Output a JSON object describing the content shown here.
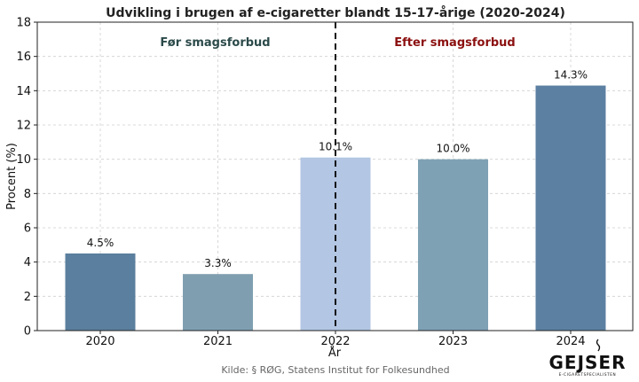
{
  "chart_data": {
    "type": "bar",
    "title": "Udvikling i brugen af e-cigaretter blandt 15-17-årige (2020-2024)",
    "xlabel": "År",
    "ylabel": "Procent (%)",
    "categories": [
      "2020",
      "2021",
      "2022",
      "2023",
      "2024"
    ],
    "values": [
      4.5,
      3.3,
      10.1,
      10.0,
      14.3
    ],
    "value_labels": [
      "4.5%",
      "3.3%",
      "10.1%",
      "10.0%",
      "14.3%"
    ],
    "bar_colors": [
      "#5b7f9e",
      "#7f9fb1",
      "#b3c6e3",
      "#7fa1b4",
      "#5c80a2"
    ],
    "ylim": [
      0,
      18
    ],
    "yticks": [
      0,
      2,
      4,
      6,
      8,
      10,
      12,
      14,
      16,
      18
    ],
    "grid": true,
    "divider_after_category_index": 2,
    "annotations": {
      "before": "Før smagsforbud",
      "after": "Efter smagsforbud"
    },
    "annotation_colors": {
      "before": "#2c4a4a",
      "after": "#8b0f0f"
    },
    "source": "Kilde: § RØG, Statens Institut for Folkesundhed"
  },
  "logo": {
    "text": "GEJSER",
    "subtext": "E-CIGARETSPECIALISTEN"
  }
}
